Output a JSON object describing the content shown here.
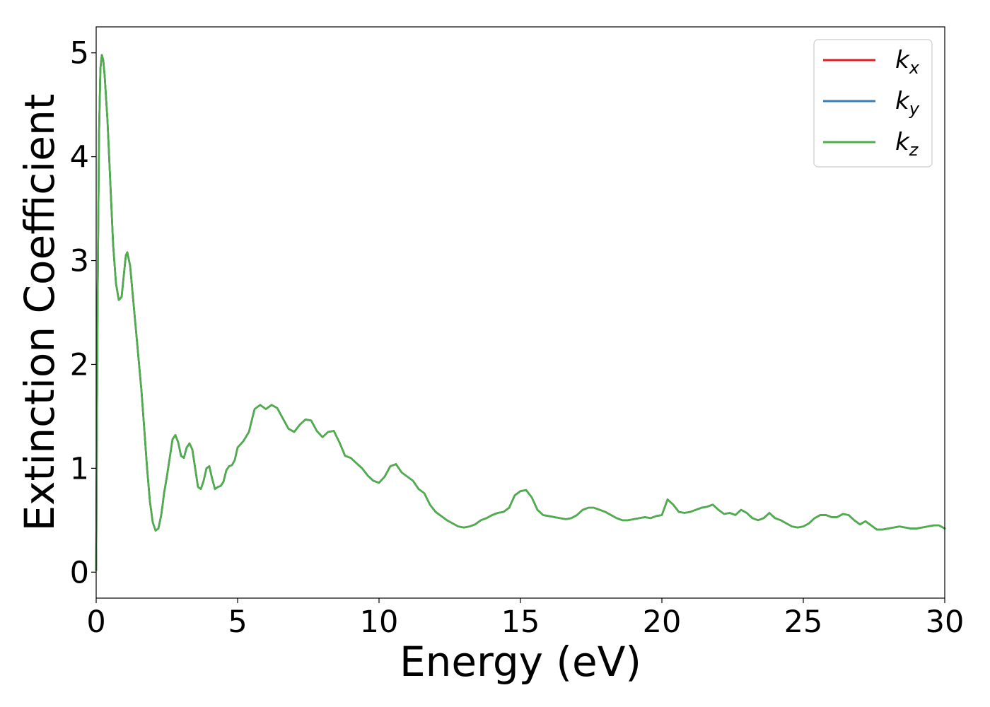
{
  "chart_data": {
    "type": "line",
    "title": "",
    "xlabel": "Energy (eV)",
    "ylabel": "Extinction Coefficient",
    "xlim": [
      0,
      30
    ],
    "ylim": [
      -0.25,
      5.25
    ],
    "xticks": [
      0,
      5,
      10,
      15,
      20,
      25,
      30
    ],
    "yticks": [
      0,
      1,
      2,
      3,
      4,
      5
    ],
    "grid": false,
    "legend_position": "top-right",
    "series": [
      {
        "name": "k_x",
        "legend_main": "k",
        "legend_sub": "x",
        "color": "#e41a1c"
      },
      {
        "name": "k_y",
        "legend_main": "k",
        "legend_sub": "y",
        "color": "#377eb8"
      },
      {
        "name": "k_z",
        "legend_main": "k",
        "legend_sub": "z",
        "color": "#4daf4a"
      }
    ],
    "x": [
      0,
      0.05,
      0.1,
      0.15,
      0.2,
      0.25,
      0.3,
      0.4,
      0.5,
      0.6,
      0.7,
      0.8,
      0.9,
      1.0,
      1.05,
      1.1,
      1.2,
      1.3,
      1.4,
      1.5,
      1.6,
      1.7,
      1.8,
      1.9,
      2.0,
      2.1,
      2.2,
      2.3,
      2.35,
      2.4,
      2.5,
      2.6,
      2.7,
      2.8,
      2.9,
      3.0,
      3.1,
      3.2,
      3.3,
      3.4,
      3.5,
      3.6,
      3.7,
      3.8,
      3.9,
      4.0,
      4.1,
      4.2,
      4.3,
      4.4,
      4.5,
      4.6,
      4.7,
      4.8,
      4.9,
      5.0,
      5.2,
      5.4,
      5.6,
      5.8,
      6.0,
      6.2,
      6.4,
      6.6,
      6.8,
      7.0,
      7.2,
      7.4,
      7.6,
      7.8,
      8.0,
      8.2,
      8.4,
      8.6,
      8.8,
      9.0,
      9.2,
      9.4,
      9.6,
      9.8,
      10.0,
      10.2,
      10.4,
      10.6,
      10.8,
      11.0,
      11.2,
      11.4,
      11.6,
      11.8,
      12.0,
      12.2,
      12.4,
      12.6,
      12.8,
      13.0,
      13.2,
      13.4,
      13.6,
      13.8,
      14.0,
      14.2,
      14.4,
      14.6,
      14.8,
      15.0,
      15.2,
      15.4,
      15.6,
      15.8,
      16.0,
      16.2,
      16.4,
      16.6,
      16.8,
      17.0,
      17.2,
      17.4,
      17.6,
      17.8,
      18.0,
      18.2,
      18.4,
      18.6,
      18.8,
      19.0,
      19.2,
      19.4,
      19.6,
      19.8,
      20.0,
      20.2,
      20.4,
      20.6,
      20.8,
      21.0,
      21.2,
      21.4,
      21.6,
      21.8,
      22.0,
      22.2,
      22.4,
      22.6,
      22.8,
      23.0,
      23.2,
      23.4,
      23.6,
      23.8,
      24.0,
      24.2,
      24.4,
      24.6,
      24.8,
      25.0,
      25.2,
      25.4,
      25.6,
      25.8,
      26.0,
      26.2,
      26.4,
      26.6,
      26.8,
      27.0,
      27.2,
      27.4,
      27.6,
      27.8,
      28.0,
      28.2,
      28.4,
      28.6,
      28.8,
      29.0,
      29.2,
      29.4,
      29.6,
      29.8,
      30.0
    ],
    "y": [
      0.02,
      2.6,
      4.2,
      4.85,
      4.98,
      4.93,
      4.78,
      4.35,
      3.75,
      3.15,
      2.78,
      2.62,
      2.65,
      2.92,
      3.05,
      3.08,
      2.95,
      2.65,
      2.35,
      2.05,
      1.75,
      1.38,
      1.0,
      0.68,
      0.48,
      0.4,
      0.42,
      0.55,
      0.65,
      0.76,
      0.92,
      1.1,
      1.28,
      1.32,
      1.25,
      1.12,
      1.1,
      1.2,
      1.24,
      1.18,
      1.0,
      0.82,
      0.8,
      0.88,
      1.0,
      1.02,
      0.9,
      0.8,
      0.82,
      0.83,
      0.87,
      0.98,
      1.02,
      1.03,
      1.08,
      1.2,
      1.26,
      1.35,
      1.57,
      1.61,
      1.57,
      1.61,
      1.58,
      1.48,
      1.38,
      1.35,
      1.42,
      1.47,
      1.46,
      1.36,
      1.3,
      1.35,
      1.36,
      1.25,
      1.12,
      1.1,
      1.05,
      1.0,
      0.93,
      0.88,
      0.86,
      0.92,
      1.02,
      1.04,
      0.96,
      0.92,
      0.88,
      0.8,
      0.76,
      0.65,
      0.58,
      0.54,
      0.5,
      0.47,
      0.44,
      0.43,
      0.44,
      0.46,
      0.5,
      0.52,
      0.55,
      0.57,
      0.58,
      0.62,
      0.74,
      0.78,
      0.79,
      0.72,
      0.6,
      0.55,
      0.54,
      0.53,
      0.52,
      0.51,
      0.52,
      0.55,
      0.6,
      0.62,
      0.62,
      0.6,
      0.58,
      0.55,
      0.52,
      0.5,
      0.5,
      0.51,
      0.52,
      0.53,
      0.52,
      0.54,
      0.55,
      0.7,
      0.65,
      0.58,
      0.57,
      0.58,
      0.6,
      0.62,
      0.63,
      0.65,
      0.6,
      0.56,
      0.57,
      0.55,
      0.6,
      0.57,
      0.52,
      0.5,
      0.52,
      0.57,
      0.52,
      0.5,
      0.47,
      0.44,
      0.43,
      0.44,
      0.47,
      0.52,
      0.55,
      0.55,
      0.53,
      0.53,
      0.56,
      0.55,
      0.5,
      0.46,
      0.49,
      0.45,
      0.41,
      0.41,
      0.42,
      0.43,
      0.44,
      0.43,
      0.42,
      0.42,
      0.43,
      0.44,
      0.45,
      0.45,
      0.42
    ]
  }
}
